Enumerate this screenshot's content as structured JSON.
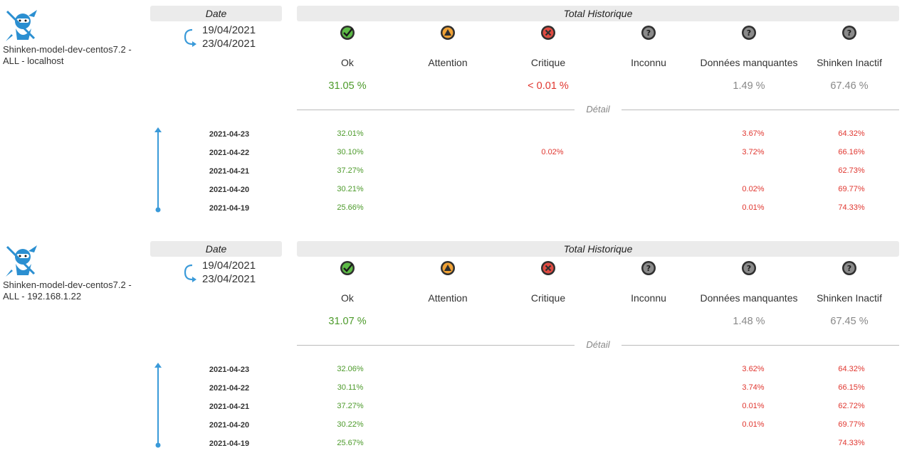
{
  "columns": [
    "Ok",
    "Attention",
    "Critique",
    "Inconnu",
    "Données manquantes",
    "Shinken Inactif"
  ],
  "column_icons": [
    "ok-check-icon",
    "warning-triangle-icon",
    "critical-x-icon",
    "unknown-question-icon",
    "missing-data-question-icon",
    "shinken-inactive-question-icon"
  ],
  "colors": {
    "ok": "#4c9a2a",
    "warning": "#f0a236",
    "critical": "#e0362f",
    "unknown": "#8a8a8a",
    "header_bg": "#ebebeb",
    "accent": "#3a9ad9"
  },
  "date_header": "Date",
  "total_header": "Total Historique",
  "detail_label": "Détail",
  "blocks": [
    {
      "host_line1": "Shinken-model-dev-centos7.2 -",
      "host_line2": "ALL - localhost",
      "date_from": "19/04/2021",
      "date_to": "23/04/2021",
      "totals": [
        "31.05 %",
        "",
        "< 0.01 %",
        "",
        "1.49 %",
        "67.46 %"
      ],
      "rows": [
        {
          "date": "2021-04-23",
          "values": [
            "32.01%",
            "",
            "",
            "",
            "3.67%",
            "64.32%"
          ]
        },
        {
          "date": "2021-04-22",
          "values": [
            "30.10%",
            "",
            "0.02%",
            "",
            "3.72%",
            "66.16%"
          ]
        },
        {
          "date": "2021-04-21",
          "values": [
            "37.27%",
            "",
            "",
            "",
            "",
            "62.73%"
          ]
        },
        {
          "date": "2021-04-20",
          "values": [
            "30.21%",
            "",
            "",
            "",
            "0.02%",
            "69.77%"
          ]
        },
        {
          "date": "2021-04-19",
          "values": [
            "25.66%",
            "",
            "",
            "",
            "0.01%",
            "74.33%"
          ]
        }
      ]
    },
    {
      "host_line1": "Shinken-model-dev-centos7.2 -",
      "host_line2": "ALL - 192.168.1.22",
      "date_from": "19/04/2021",
      "date_to": "23/04/2021",
      "totals": [
        "31.07 %",
        "",
        "",
        "",
        "1.48 %",
        "67.45 %"
      ],
      "rows": [
        {
          "date": "2021-04-23",
          "values": [
            "32.06%",
            "",
            "",
            "",
            "3.62%",
            "64.32%"
          ]
        },
        {
          "date": "2021-04-22",
          "values": [
            "30.11%",
            "",
            "",
            "",
            "3.74%",
            "66.15%"
          ]
        },
        {
          "date": "2021-04-21",
          "values": [
            "37.27%",
            "",
            "",
            "",
            "0.01%",
            "62.72%"
          ]
        },
        {
          "date": "2021-04-20",
          "values": [
            "30.22%",
            "",
            "",
            "",
            "0.01%",
            "69.77%"
          ]
        },
        {
          "date": "2021-04-19",
          "values": [
            "25.67%",
            "",
            "",
            "",
            "",
            "74.33%"
          ]
        }
      ]
    }
  ]
}
